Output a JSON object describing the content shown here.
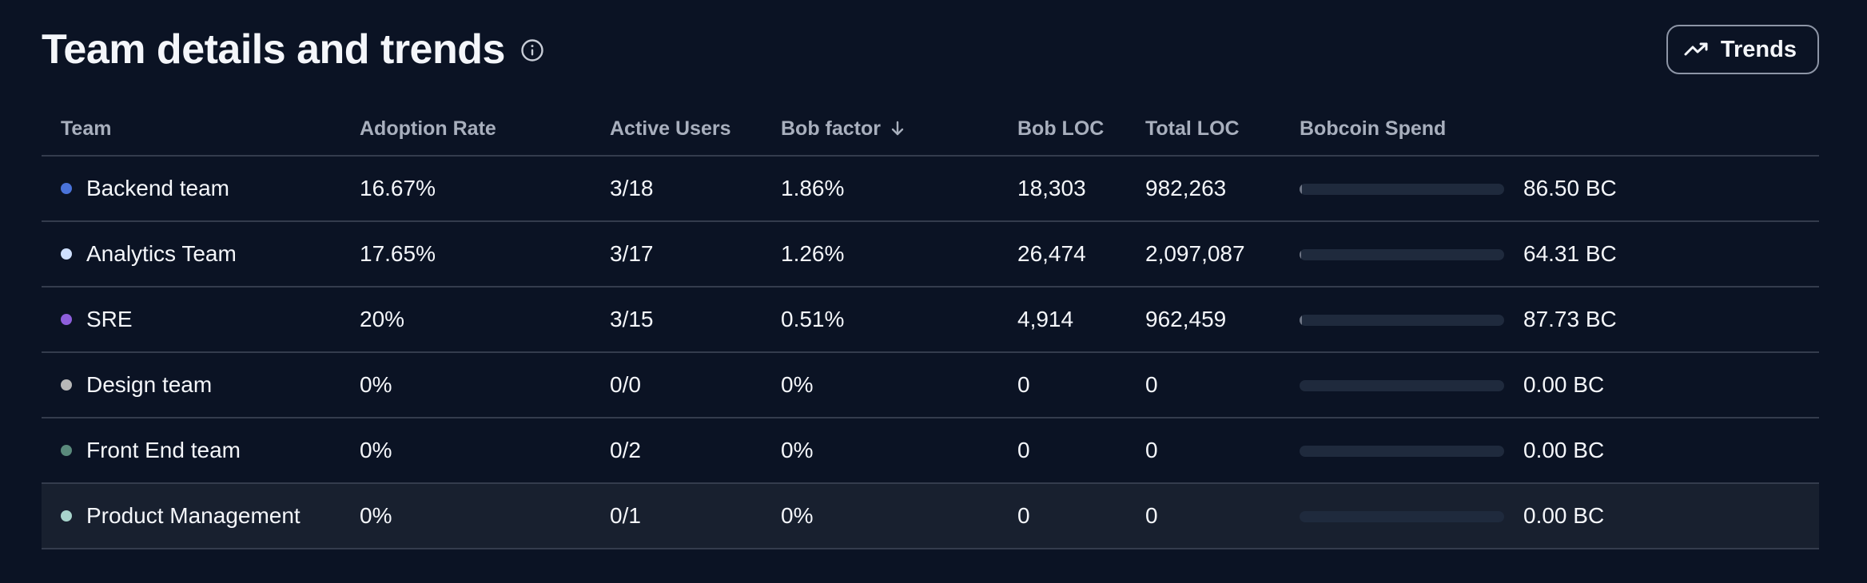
{
  "header": {
    "title": "Team details and trends",
    "info_icon": "info-circle-icon",
    "trends_button": {
      "label": "Trends",
      "icon": "trending-up-icon"
    }
  },
  "table": {
    "columns": [
      {
        "key": "team",
        "label": "Team"
      },
      {
        "key": "adoption_rate",
        "label": "Adoption Rate"
      },
      {
        "key": "active_users",
        "label": "Active Users"
      },
      {
        "key": "bob_factor",
        "label": "Bob factor",
        "sort_icon": "arrow-down-icon",
        "sorted": "descending"
      },
      {
        "key": "bob_loc",
        "label": "Bob LOC"
      },
      {
        "key": "total_loc",
        "label": "Total LOC"
      },
      {
        "key": "bobcoin_spend",
        "label": "Bobcoin Spend"
      }
    ],
    "rows": [
      {
        "team": "Backend team",
        "dot_color": "#4a73d9",
        "adoption_rate": "16.67%",
        "active_users": "3/18",
        "bob_factor": "1.86%",
        "bob_loc": "18,303",
        "total_loc": "982,263",
        "spend_fraction": 0.012,
        "bobcoin_spend": "86.50 BC"
      },
      {
        "team": "Analytics Team",
        "dot_color": "#cfe0ff",
        "adoption_rate": "17.65%",
        "active_users": "3/17",
        "bob_factor": "1.26%",
        "bob_loc": "26,474",
        "total_loc": "2,097,087",
        "spend_fraction": 0.009,
        "bobcoin_spend": "64.31 BC"
      },
      {
        "team": "SRE",
        "dot_color": "#8e5fdc",
        "adoption_rate": "20%",
        "active_users": "3/15",
        "bob_factor": "0.51%",
        "bob_loc": "4,914",
        "total_loc": "962,459",
        "spend_fraction": 0.012,
        "bobcoin_spend": "87.73 BC"
      },
      {
        "team": "Design team",
        "dot_color": "#b8b8b8",
        "adoption_rate": "0%",
        "active_users": "0/0",
        "bob_factor": "0%",
        "bob_loc": "0",
        "total_loc": "0",
        "spend_fraction": 0,
        "bobcoin_spend": "0.00 BC"
      },
      {
        "team": "Front End team",
        "dot_color": "#5a8a7c",
        "adoption_rate": "0%",
        "active_users": "0/2",
        "bob_factor": "0%",
        "bob_loc": "0",
        "total_loc": "0",
        "spend_fraction": 0,
        "bobcoin_spend": "0.00 BC"
      },
      {
        "team": "Product Management",
        "dot_color": "#a8d4cc",
        "adoption_rate": "0%",
        "active_users": "0/1",
        "bob_factor": "0%",
        "bob_loc": "0",
        "total_loc": "0",
        "spend_fraction": 0,
        "bobcoin_spend": "0.00 BC"
      }
    ],
    "hovered_row_index": 5
  }
}
